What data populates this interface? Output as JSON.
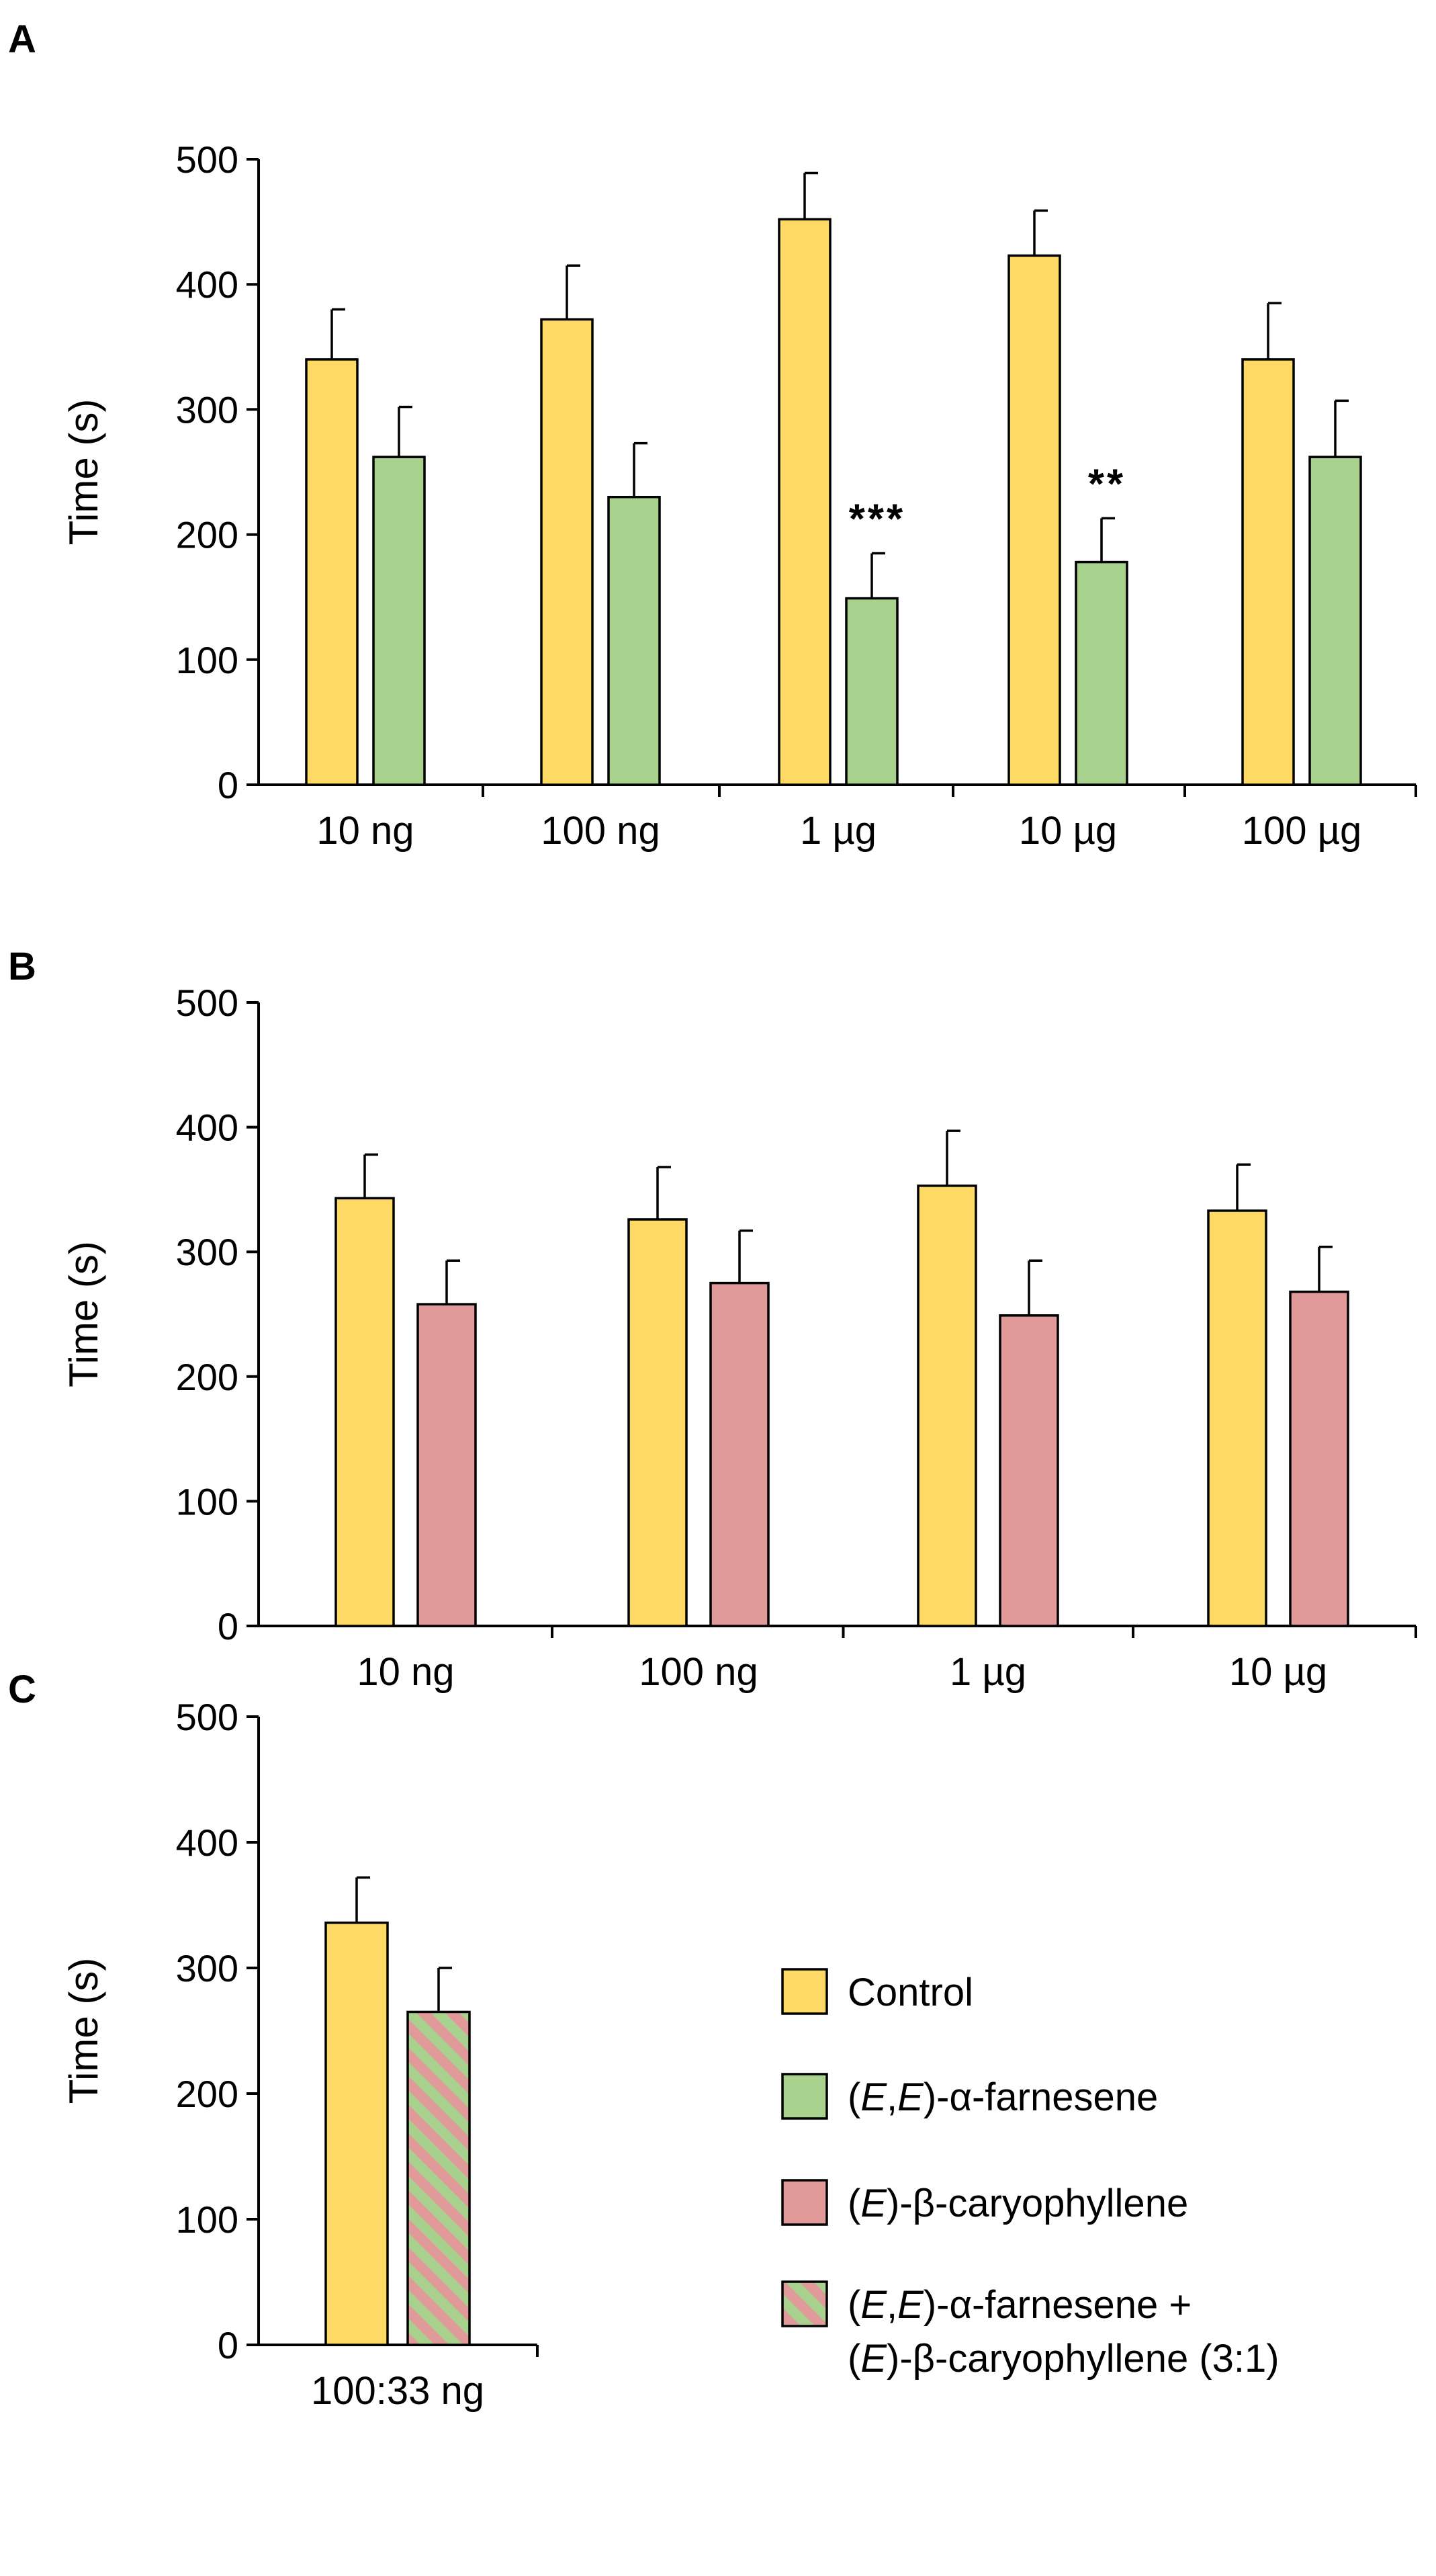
{
  "colors": {
    "control": "#FFD966",
    "farnesene": "#A9D18E",
    "caryophyllene": "#E09A9A",
    "mix_stripe_a": "#E09A9A",
    "mix_stripe_b": "#A9D18E"
  },
  "chart_data": [
    {
      "panel": "A",
      "type": "bar",
      "ylabel": "Time (s)",
      "ylim": [
        0,
        500
      ],
      "yticks": [
        0,
        100,
        200,
        300,
        400,
        500
      ],
      "categories": [
        "10 ng",
        "100 ng",
        "1 µg",
        "10 µg",
        "100 µg"
      ],
      "series": [
        {
          "name": "Control",
          "values": [
            340,
            372,
            452,
            423,
            340
          ],
          "errors": [
            40,
            43,
            37,
            36,
            45
          ]
        },
        {
          "name": "(E,E)-α-farnesene",
          "values": [
            262,
            230,
            149,
            178,
            262
          ],
          "errors": [
            40,
            43,
            36,
            35,
            45
          ]
        }
      ],
      "annotations": [
        {
          "category": "1 µg",
          "series": "(E,E)-α-farnesene",
          "text": "***"
        },
        {
          "category": "10 µg",
          "series": "(E,E)-α-farnesene",
          "text": "**"
        }
      ]
    },
    {
      "panel": "B",
      "type": "bar",
      "ylabel": "Time (s)",
      "ylim": [
        0,
        500
      ],
      "yticks": [
        0,
        100,
        200,
        300,
        400,
        500
      ],
      "categories": [
        "10 ng",
        "100 ng",
        "1 µg",
        "10 µg"
      ],
      "series": [
        {
          "name": "Control",
          "values": [
            343,
            326,
            353,
            333
          ],
          "errors": [
            35,
            42,
            44,
            37
          ]
        },
        {
          "name": "(E)-β-caryophyllene",
          "values": [
            258,
            275,
            249,
            268
          ],
          "errors": [
            35,
            42,
            44,
            36
          ]
        }
      ],
      "annotations": []
    },
    {
      "panel": "C",
      "type": "bar",
      "ylabel": "Time (s)",
      "ylim": [
        0,
        500
      ],
      "yticks": [
        0,
        100,
        200,
        300,
        400,
        500
      ],
      "categories": [
        "100:33 ng"
      ],
      "series": [
        {
          "name": "Control",
          "values": [
            336
          ],
          "errors": [
            36
          ]
        },
        {
          "name": "(E,E)-α-farnesene + (E)-β-caryophyllene (3:1)",
          "values": [
            265
          ],
          "errors": [
            35
          ]
        }
      ],
      "annotations": []
    }
  ],
  "legend": {
    "items": [
      {
        "key": "control",
        "lines": [
          [
            {
              "t": "Control",
              "i": false
            }
          ]
        ]
      },
      {
        "key": "farnesene",
        "lines": [
          [
            {
              "t": "(",
              "i": false
            },
            {
              "t": "E",
              "i": true
            },
            {
              "t": ",",
              "i": false
            },
            {
              "t": "E",
              "i": true
            },
            {
              "t": ")-α-farnesene",
              "i": false
            }
          ]
        ]
      },
      {
        "key": "caryophyllene",
        "lines": [
          [
            {
              "t": "(",
              "i": false
            },
            {
              "t": "E",
              "i": true
            },
            {
              "t": ")-β-caryophyllene",
              "i": false
            }
          ]
        ]
      },
      {
        "key": "mix",
        "lines": [
          [
            {
              "t": "(",
              "i": false
            },
            {
              "t": "E",
              "i": true
            },
            {
              "t": ",",
              "i": false
            },
            {
              "t": "E",
              "i": true
            },
            {
              "t": ")-α-farnesene +",
              "i": false
            }
          ],
          [
            {
              "t": "(",
              "i": false
            },
            {
              "t": "E",
              "i": true
            },
            {
              "t": ")-β-caryophyllene (3:1)",
              "i": false
            }
          ]
        ]
      }
    ]
  }
}
